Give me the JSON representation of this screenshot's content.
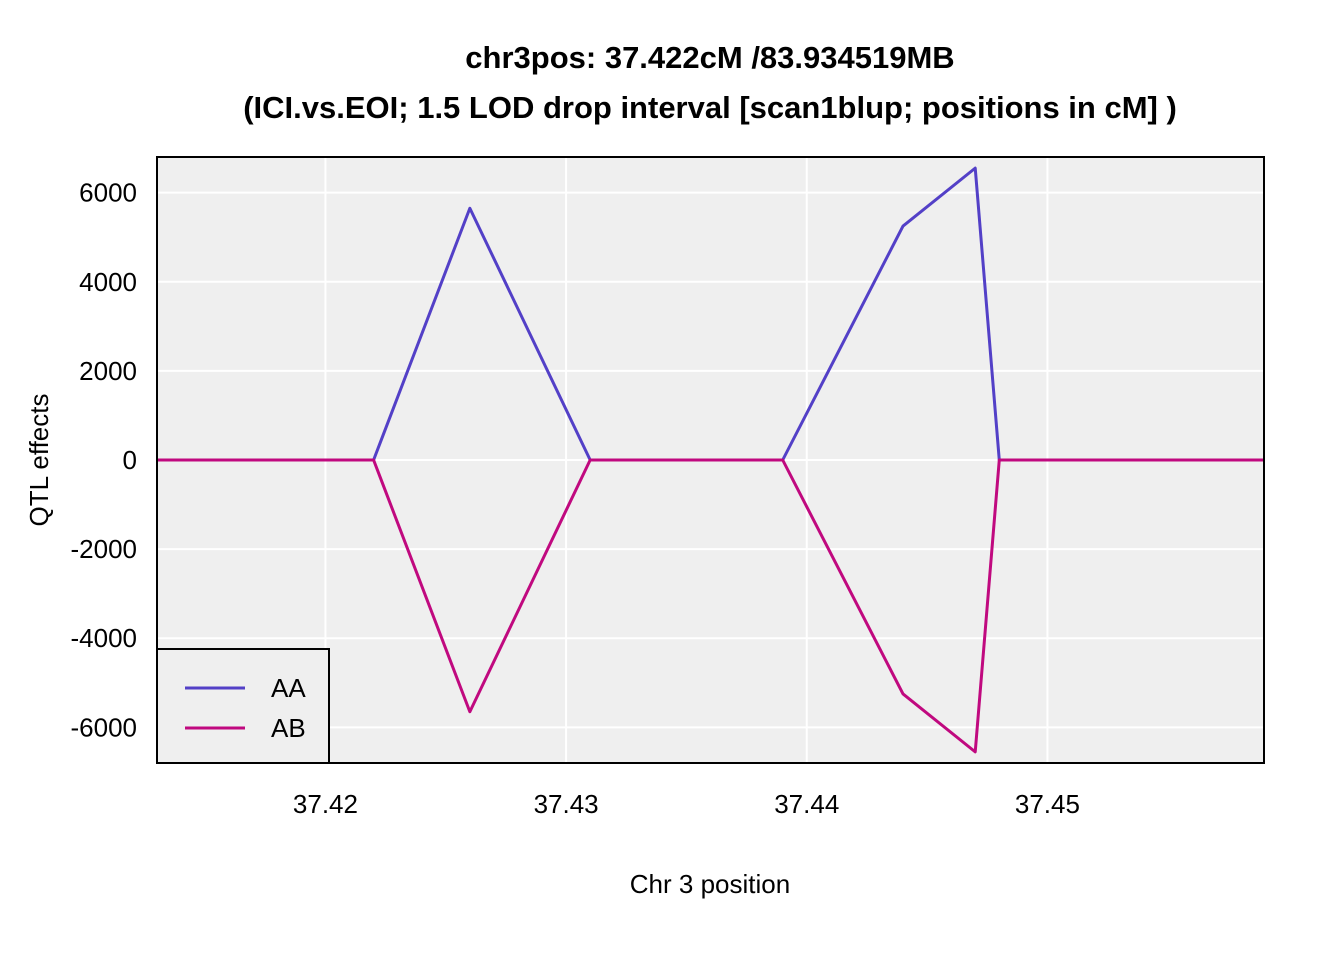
{
  "chart_data": {
    "type": "line",
    "title_line1": "chr3pos: 37.422cM /83.934519MB",
    "title_line2": "(ICI.vs.EOI; 1.5 LOD drop interval [scan1blup; positions in cM] )",
    "xlabel": "Chr 3 position",
    "ylabel": "QTL effects",
    "xlim": [
      37.413,
      37.459
    ],
    "ylim": [
      -6800,
      6800
    ],
    "xticks": [
      37.42,
      37.43,
      37.44,
      37.45
    ],
    "xtick_labels": [
      "37.42",
      "37.43",
      "37.44",
      "37.45"
    ],
    "yticks": [
      6000,
      4000,
      2000,
      0,
      -2000,
      -4000,
      -6000
    ],
    "ytick_labels": [
      "6000",
      "4000",
      "2000",
      "0",
      "-2000",
      "-4000",
      "-6000"
    ],
    "grid": true,
    "legend_position": "bottom-left",
    "x": [
      37.413,
      37.422,
      37.426,
      37.431,
      37.439,
      37.444,
      37.447,
      37.448,
      37.459
    ],
    "series": [
      {
        "name": "AA",
        "color": "#5340c7",
        "values": [
          0,
          0,
          5650,
          0,
          0,
          5250,
          6550,
          0,
          0
        ]
      },
      {
        "name": "AB",
        "color": "#c0097f",
        "values": [
          0,
          0,
          -5650,
          0,
          0,
          -5250,
          -6550,
          0,
          0
        ]
      }
    ]
  }
}
